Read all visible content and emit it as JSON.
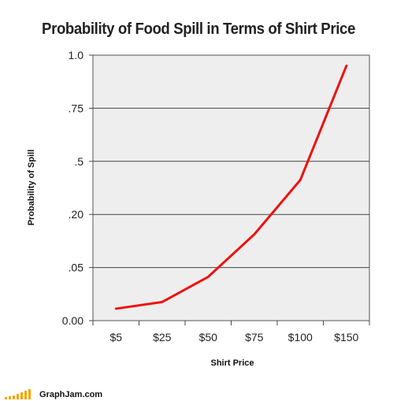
{
  "chart_data": {
    "type": "line",
    "title": "Probability of Food Spill in Terms of Shirt Price",
    "xlabel": "Shirt Price",
    "ylabel": "Probability of Spill",
    "categories": [
      "$5",
      "$25",
      "$50",
      "$75",
      "$100",
      "$150"
    ],
    "y_tick_labels": [
      "0.00",
      ".05",
      ".20",
      ".5",
      ".75",
      "1.0"
    ],
    "series": [
      {
        "values": [
          0.045,
          0.07,
          0.165,
          0.325,
          0.53,
          0.96
        ]
      }
    ],
    "ylim": [
      0,
      1
    ],
    "grid": true,
    "line_color": "#ee1111",
    "plot_background": "#eeeeee"
  },
  "footer": {
    "brand": "GraphJam.com"
  }
}
